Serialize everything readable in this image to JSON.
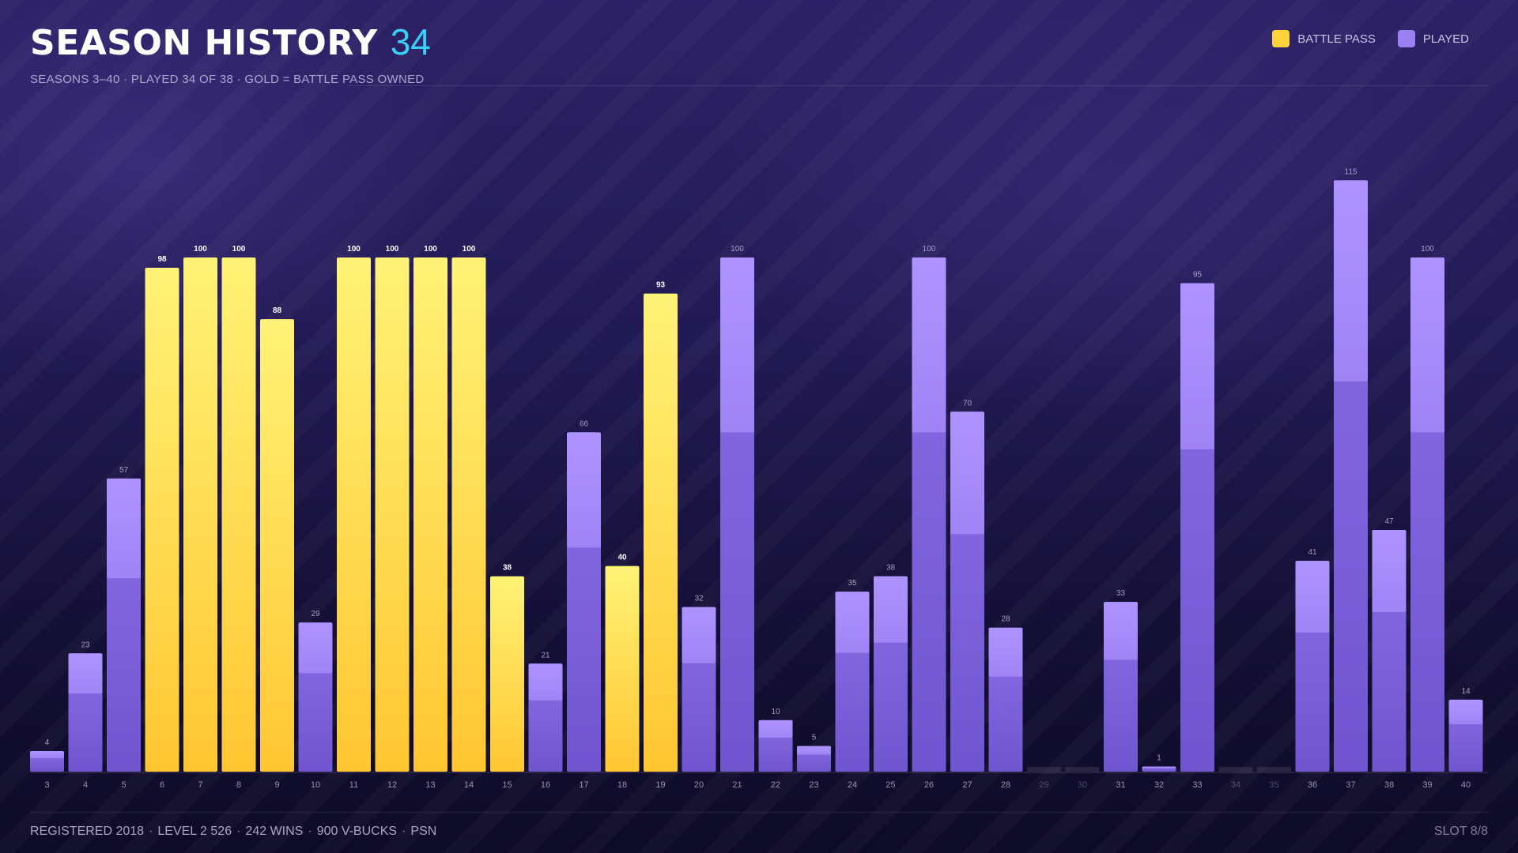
{
  "header": {
    "title": "SEASON HISTORY",
    "count": "34",
    "subtitle": "SEASONS 3–40 · PLAYED 34 OF 38 · GOLD = BATTLE PASS OWNED"
  },
  "legend": {
    "battle_pass": "BATTLE PASS",
    "played": "PLAYED"
  },
  "colors": {
    "gold": "#ffd23c",
    "purple": "#8a6ee8",
    "accent": "#39d0f5"
  },
  "chart_data": {
    "type": "bar",
    "title": "SEASON HISTORY",
    "categories": [
      "3",
      "4",
      "5",
      "6",
      "7",
      "8",
      "9",
      "10",
      "11",
      "12",
      "13",
      "14",
      "15",
      "16",
      "17",
      "18",
      "19",
      "20",
      "21",
      "22",
      "23",
      "24",
      "25",
      "26",
      "27",
      "28",
      "29",
      "30",
      "31",
      "32",
      "33",
      "34",
      "35",
      "36",
      "37",
      "38",
      "39",
      "40"
    ],
    "values": [
      4,
      23,
      57,
      98,
      100,
      100,
      88,
      29,
      100,
      100,
      100,
      100,
      38,
      21,
      66,
      40,
      93,
      32,
      100,
      10,
      5,
      35,
      38,
      100,
      70,
      28,
      null,
      null,
      33,
      1,
      95,
      null,
      null,
      41,
      115,
      47,
      100,
      14
    ],
    "battle_pass": [
      false,
      false,
      false,
      true,
      true,
      true,
      true,
      false,
      true,
      true,
      true,
      true,
      true,
      false,
      false,
      true,
      true,
      false,
      false,
      false,
      false,
      false,
      false,
      false,
      false,
      false,
      false,
      false,
      false,
      false,
      false,
      false,
      false,
      false,
      false,
      false,
      false,
      false
    ],
    "played": [
      true,
      true,
      true,
      true,
      true,
      true,
      true,
      true,
      true,
      true,
      true,
      true,
      true,
      true,
      true,
      true,
      true,
      true,
      true,
      true,
      true,
      true,
      true,
      true,
      true,
      true,
      false,
      false,
      true,
      true,
      true,
      false,
      false,
      true,
      true,
      true,
      true,
      true
    ],
    "ylim": [
      0,
      115
    ],
    "grid": false,
    "legend_position": "top-right"
  },
  "footer": {
    "items": [
      "REGISTERED 2018",
      "LEVEL 2 526",
      "242 WINS",
      "900 V-BUCKS",
      "PSN"
    ],
    "separator": "·",
    "slot": "SLOT 8/8"
  }
}
